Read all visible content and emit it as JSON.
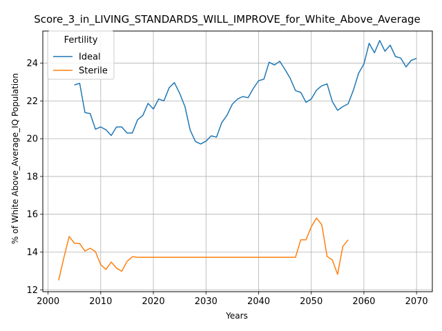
{
  "chart_data": {
    "type": "line",
    "title": "Score_3_in_LIVING_STANDARDS_WILL_IMPROVE_for_White_Above_Average",
    "xlabel": "Years",
    "ylabel": "% of White Above_Average_IQ Population",
    "xlim": [
      1999,
      2073
    ],
    "ylim": [
      11.9,
      25.7
    ],
    "xticks": [
      2000,
      2010,
      2020,
      2030,
      2040,
      2050,
      2060,
      2070
    ],
    "yticks": [
      12,
      14,
      16,
      18,
      20,
      22,
      24
    ],
    "grid": true,
    "legend": {
      "title": "Fertility",
      "placement": "top-left"
    },
    "series": [
      {
        "name": "Ideal",
        "color": "#1f77b4",
        "x": [
          2005,
          2006,
          2007,
          2008,
          2009,
          2010,
          2011,
          2012,
          2013,
          2014,
          2015,
          2016,
          2017,
          2018,
          2019,
          2020,
          2021,
          2022,
          2023,
          2024,
          2025,
          2026,
          2027,
          2028,
          2029,
          2030,
          2031,
          2032,
          2033,
          2034,
          2035,
          2036,
          2037,
          2038,
          2039,
          2040,
          2041,
          2042,
          2043,
          2044,
          2045,
          2046,
          2047,
          2048,
          2049,
          2050,
          2051,
          2052,
          2053,
          2054,
          2055,
          2056,
          2057,
          2058,
          2059,
          2060,
          2061,
          2062,
          2063,
          2064,
          2065,
          2066,
          2067,
          2068,
          2069,
          2070
        ],
        "y": [
          22.85,
          22.93,
          21.38,
          21.33,
          20.5,
          20.62,
          20.47,
          20.17,
          20.62,
          20.62,
          20.3,
          20.3,
          21.0,
          21.23,
          21.87,
          21.57,
          22.1,
          22.0,
          22.7,
          22.97,
          22.4,
          21.7,
          20.45,
          19.85,
          19.72,
          19.87,
          20.15,
          20.08,
          20.85,
          21.25,
          21.83,
          22.1,
          22.23,
          22.17,
          22.67,
          23.07,
          23.15,
          24.05,
          23.9,
          24.1,
          23.67,
          23.2,
          22.55,
          22.45,
          21.93,
          22.1,
          22.57,
          22.8,
          22.9,
          21.97,
          21.5,
          21.7,
          21.85,
          22.57,
          23.47,
          23.95,
          25.05,
          24.55,
          25.2,
          24.63,
          24.95,
          24.35,
          24.27,
          23.8,
          24.15,
          24.25
        ]
      },
      {
        "name": "Sterile",
        "color": "#ff7f0e",
        "x": [
          2002,
          2003,
          2004,
          2005,
          2006,
          2007,
          2008,
          2009,
          2010,
          2011,
          2012,
          2013,
          2014,
          2015,
          2016,
          2017,
          2018,
          2019,
          2020,
          2021,
          2022,
          2023,
          2024,
          2025,
          2026,
          2027,
          2028,
          2029,
          2030,
          2031,
          2032,
          2033,
          2034,
          2035,
          2036,
          2037,
          2038,
          2039,
          2040,
          2041,
          2042,
          2043,
          2044,
          2045,
          2046,
          2047,
          2048,
          2049,
          2050,
          2051,
          2052,
          2053,
          2054,
          2055,
          2056,
          2057
        ],
        "y": [
          12.5,
          13.7,
          14.82,
          14.47,
          14.45,
          14.05,
          14.2,
          14.02,
          13.33,
          13.08,
          13.47,
          13.15,
          12.98,
          13.5,
          13.75,
          13.72,
          13.72,
          13.72,
          13.72,
          13.72,
          13.72,
          13.72,
          13.72,
          13.72,
          13.72,
          13.72,
          13.72,
          13.72,
          13.72,
          13.72,
          13.72,
          13.72,
          13.72,
          13.72,
          13.72,
          13.72,
          13.72,
          13.72,
          13.72,
          13.72,
          13.72,
          13.72,
          13.72,
          13.72,
          13.72,
          13.72,
          14.65,
          14.65,
          15.33,
          15.8,
          15.45,
          13.77,
          13.58,
          12.82,
          14.3,
          14.65
        ]
      }
    ]
  }
}
